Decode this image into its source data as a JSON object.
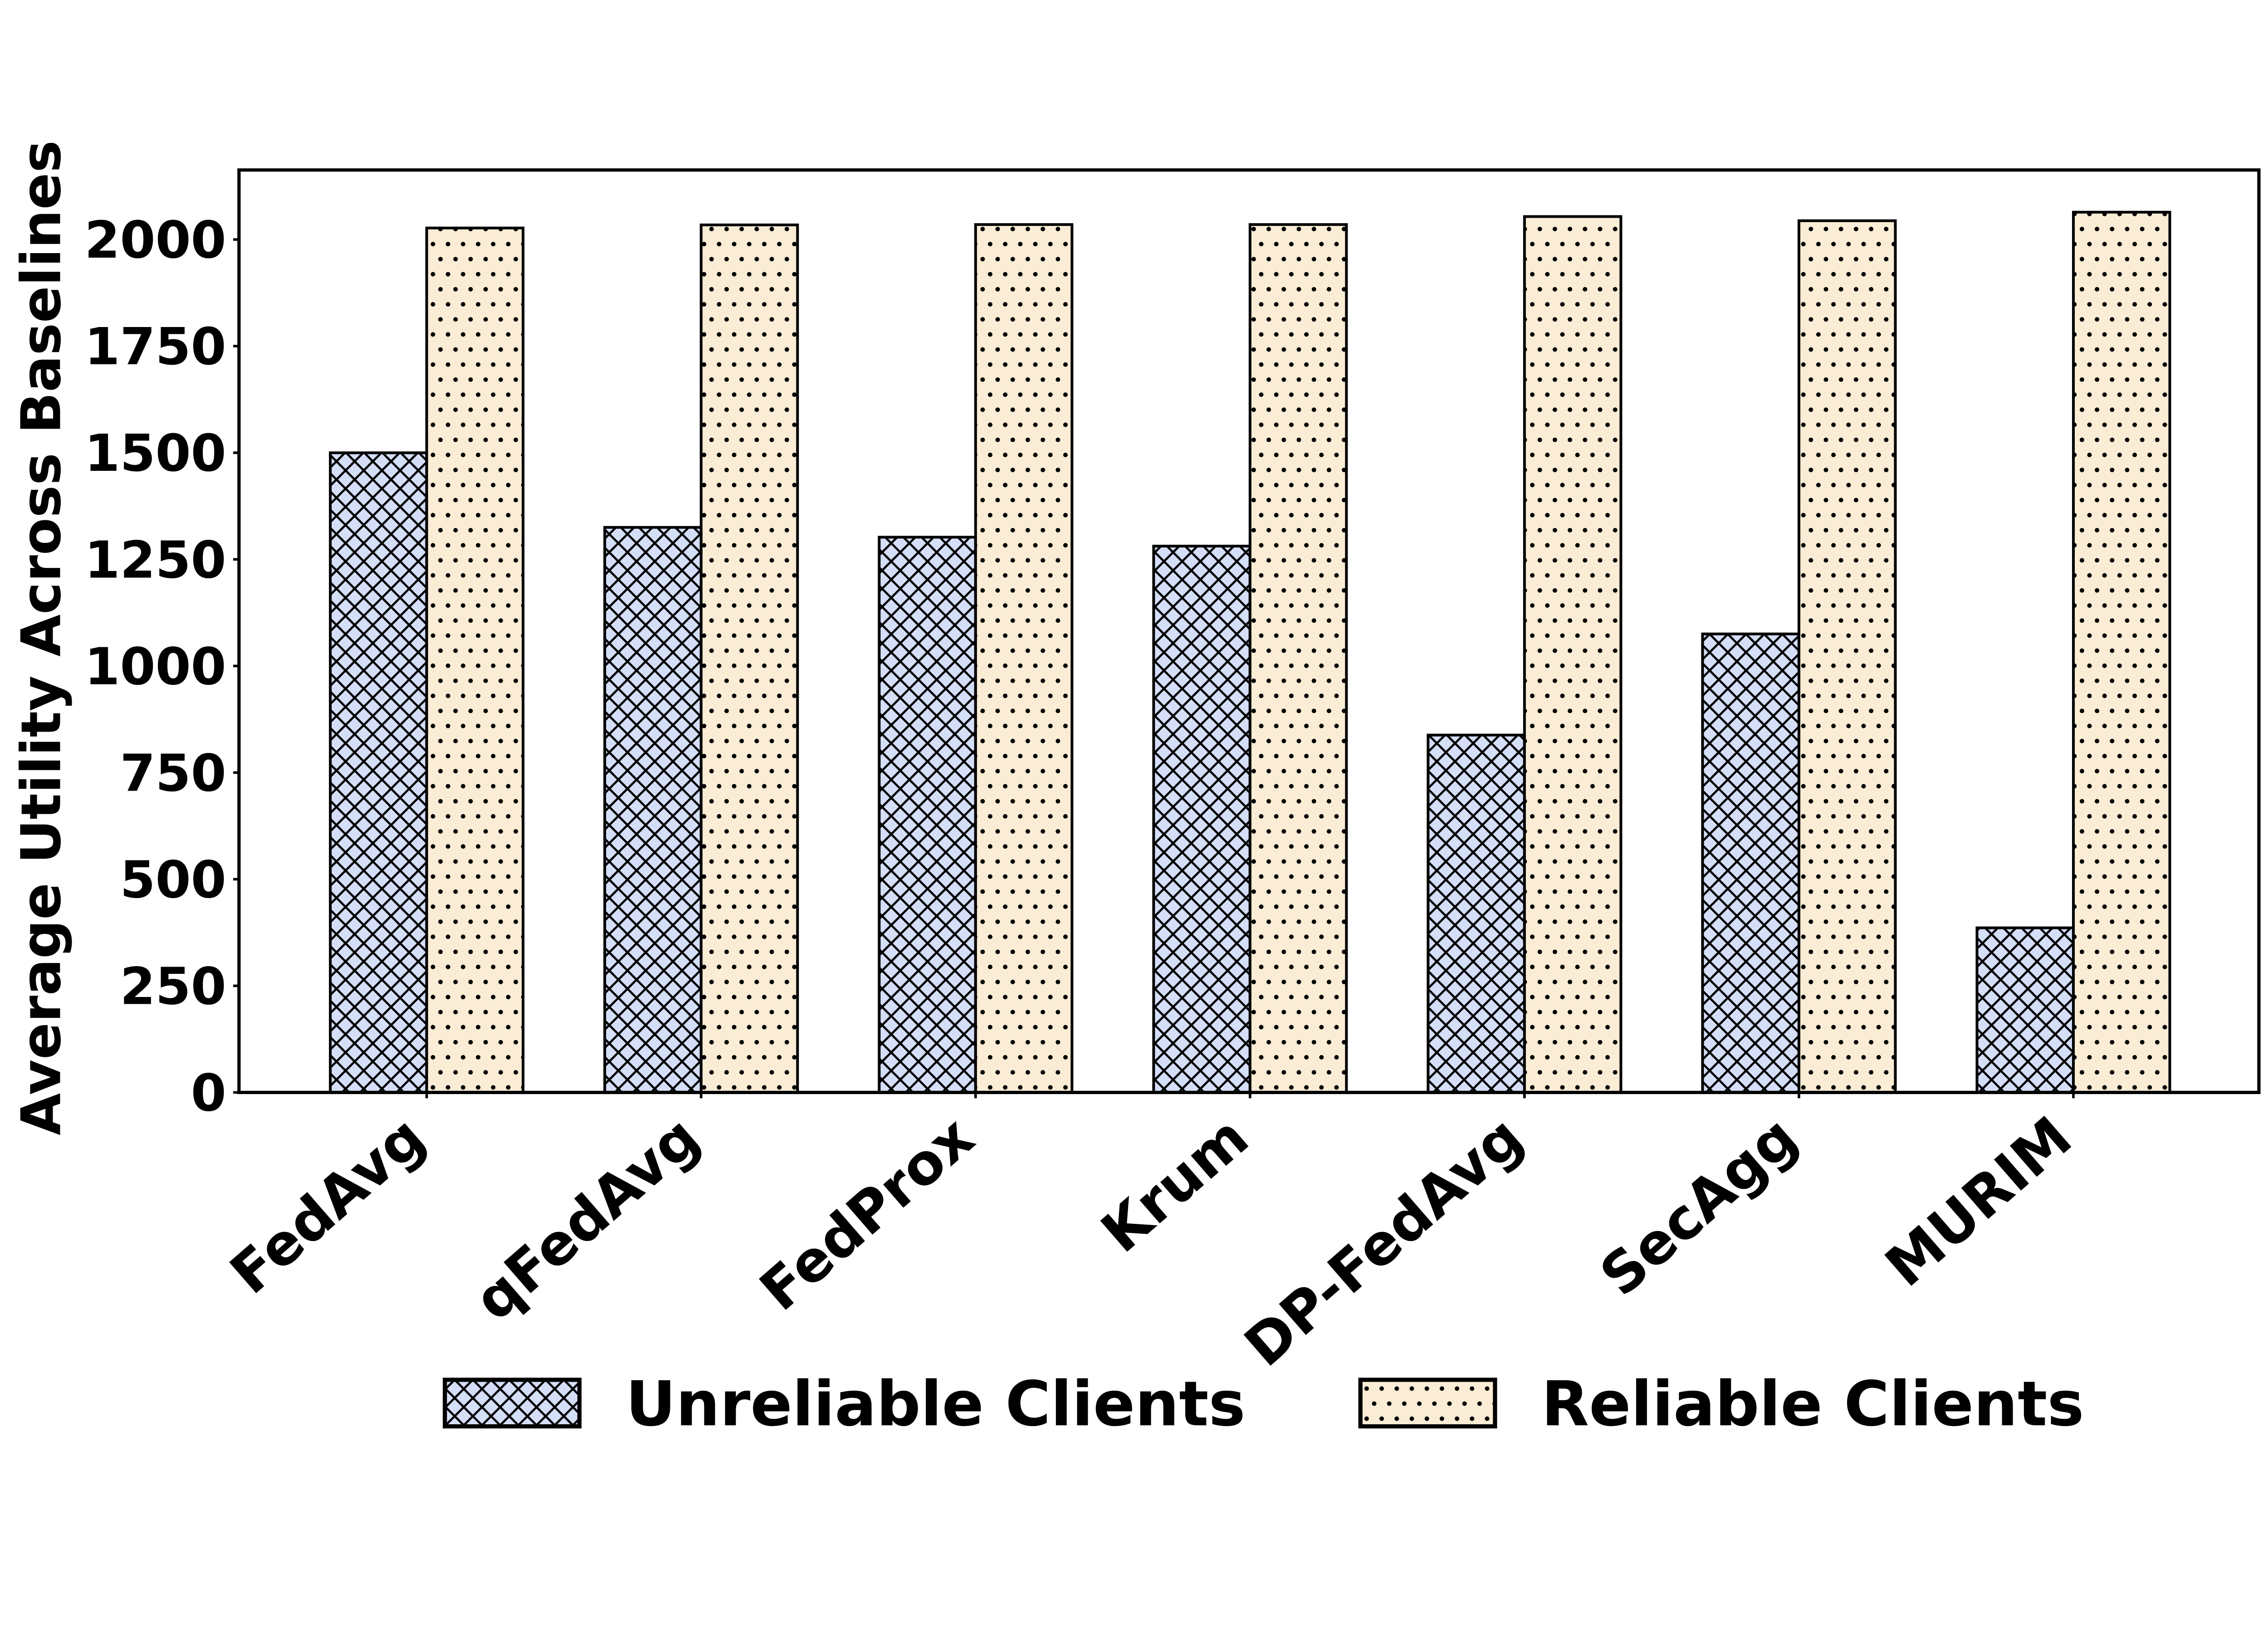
{
  "chart_data": {
    "type": "bar",
    "title": "",
    "ylabel": "Average Utility Across Baselines",
    "xlabel": "",
    "categories": [
      "FedAvg",
      "qFedAvg",
      "FedProx",
      "Krum",
      "DP-FedAvg",
      "SecAgg",
      "MURIM"
    ],
    "series": [
      {
        "name": "Unreliable Clients",
        "hatch": "crosshatch",
        "fill": "#d4def7",
        "values": [
          1500,
          1325,
          1302,
          1281,
          838,
          1075,
          386
        ]
      },
      {
        "name": "Reliable Clients",
        "hatch": "dots",
        "fill": "#fbecd5",
        "values": [
          2027,
          2034,
          2035,
          2035,
          2054,
          2044,
          2064
        ]
      }
    ],
    "y_ticks": [
      0,
      250,
      500,
      750,
      1000,
      1250,
      1500,
      1750,
      2000
    ],
    "ylim": [
      0,
      2163
    ],
    "grid": false,
    "legend_position": "bottom center",
    "edge_color": "#000000",
    "background": "#ffffff"
  }
}
